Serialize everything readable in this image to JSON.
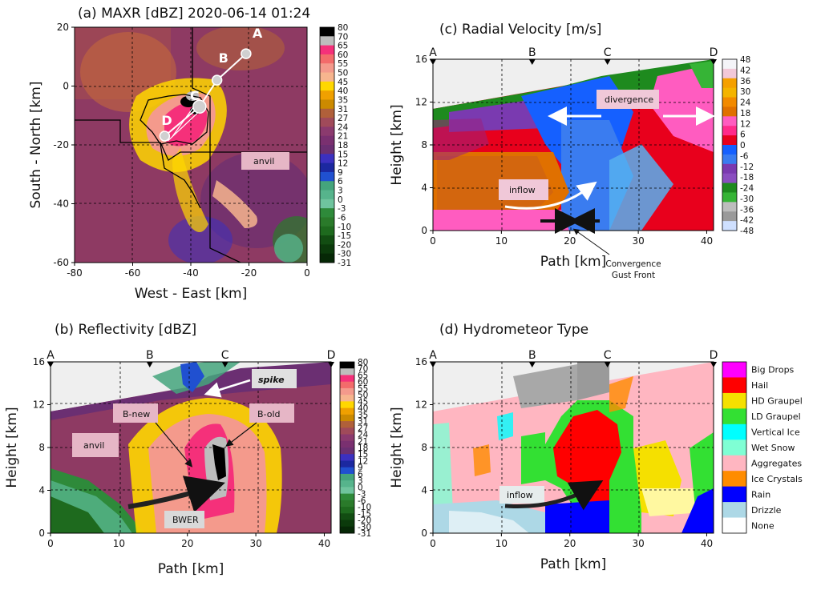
{
  "panels": {
    "a": {
      "title": "(a) MAXR [dBZ] 2020-06-14 01:24",
      "xlabel": "West - East [km]",
      "ylabel": "South - North [km]",
      "xticks": [
        "-80",
        "-60",
        "-40",
        "-20",
        "0"
      ],
      "yticks": [
        "20",
        "0",
        "-20",
        "-40",
        "-60"
      ],
      "colorbar": [
        "80",
        "70",
        "65",
        "60",
        "55",
        "50",
        "45",
        "40",
        "35",
        "31",
        "27",
        "24",
        "21",
        "18",
        "15",
        "12",
        "9",
        "6",
        "3",
        "0",
        "-3",
        "-6",
        "-10",
        "-15",
        "-20",
        "-30",
        "-31"
      ],
      "colorbar_colors": [
        "#000000",
        "#bdbdbd",
        "#f5307a",
        "#f36b6b",
        "#f49a8c",
        "#f7b58e",
        "#ffd700",
        "#f0a000",
        "#cc8a00",
        "#b0603a",
        "#a04a5a",
        "#8b3a6e",
        "#7a3070",
        "#6b2f72",
        "#3b30c0",
        "#1b28a0",
        "#2050d0",
        "#44a47c",
        "#56b48c",
        "#6fc49e",
        "#2e8a3a",
        "#2a7a2a",
        "#1e6a1e",
        "#124d12",
        "#0b3a0b",
        "#062806"
      ],
      "points": [
        "A",
        "B",
        "C",
        "D"
      ],
      "annotation": "anvil"
    },
    "b": {
      "title": "(b) Reflectivity [dBZ]",
      "xlabel": "Path [km]",
      "ylabel": "Height [km]",
      "xticks": [
        "0",
        "10",
        "20",
        "30",
        "40"
      ],
      "yticks": [
        "16",
        "12",
        "8",
        "4",
        "0"
      ],
      "path_points": [
        "A",
        "B",
        "C",
        "D"
      ],
      "colorbar": [
        "80",
        "70",
        "65",
        "60",
        "55",
        "50",
        "45",
        "40",
        "35",
        "31",
        "27",
        "24",
        "21",
        "18",
        "15",
        "12",
        "9",
        "6",
        "3",
        "0",
        "-3",
        "-6",
        "-10",
        "-15",
        "-20",
        "-30",
        "-31"
      ],
      "annotations": {
        "spike": "spike",
        "b_new": "B-new",
        "b_old": "B-old",
        "anvil": "anvil",
        "bwer": "BWER"
      }
    },
    "c": {
      "title": "(c)  Radial Velocity [m/s]",
      "xlabel": "Path [km]",
      "ylabel": "Height [km]",
      "xticks": [
        "0",
        "10",
        "20",
        "30",
        "40"
      ],
      "yticks": [
        "16",
        "12",
        "8",
        "4",
        "0"
      ],
      "path_points": [
        "A",
        "B",
        "C",
        "D"
      ],
      "colorbar": [
        "48",
        "42",
        "36",
        "30",
        "24",
        "18",
        "12",
        "6",
        "0",
        "-6",
        "-12",
        "-18",
        "-24",
        "-30",
        "-36",
        "-42",
        "-48"
      ],
      "colorbar_colors": [
        "#f4f4f8",
        "#f2c8d8",
        "#f5a000",
        "#f4b400",
        "#f28a00",
        "#e07000",
        "#ff5cc0",
        "#ff2a8a",
        "#e8001c",
        "#1560ff",
        "#3a7cf0",
        "#7a3ab0",
        "#8a4ec0",
        "#1e8a1e",
        "#36b436",
        "#bdbdbd",
        "#9a9a9a",
        "#cfe0ff"
      ],
      "annotations": {
        "divergence": "divergence",
        "inflow": "inflow",
        "convergence": "Convergence",
        "gust_front": "Gust Front"
      }
    },
    "d": {
      "title": "(d)  Hydrometeor Type",
      "xlabel": "Path [km]",
      "ylabel": "Height [km]",
      "xticks": [
        "0",
        "10",
        "20",
        "30",
        "40"
      ],
      "yticks": [
        "16",
        "12",
        "8",
        "4",
        "0"
      ],
      "path_points": [
        "A",
        "B",
        "C",
        "D"
      ],
      "legend": [
        {
          "label": "Big Drops",
          "color": "#ff00ff"
        },
        {
          "label": "Hail",
          "color": "#ff0000"
        },
        {
          "label": "HD Graupel",
          "color": "#f5e000"
        },
        {
          "label": "LD Graupel",
          "color": "#33e033"
        },
        {
          "label": "Vertical Ice",
          "color": "#00ffff"
        },
        {
          "label": "Wet Snow",
          "color": "#7fffd4"
        },
        {
          "label": "Aggregates",
          "color": "#ffb6c1"
        },
        {
          "label": "Ice Crystals",
          "color": "#ff8c00"
        },
        {
          "label": "Rain",
          "color": "#0000ff"
        },
        {
          "label": "Drizzle",
          "color": "#add8e6"
        },
        {
          "label": "None",
          "color": "#ffffff"
        }
      ],
      "annotation": "inflow"
    }
  },
  "chart_data": [
    {
      "type": "heatmap",
      "title": "(a) MAXR [dBZ] 2020-06-14 01:24",
      "xlabel": "West - East [km]",
      "ylabel": "South - North [km]",
      "xlim": [
        -80,
        0
      ],
      "ylim": [
        -60,
        20
      ],
      "path_points": [
        {
          "name": "A",
          "x": -21,
          "y": 11
        },
        {
          "name": "B",
          "x": -31,
          "y": 2
        },
        {
          "name": "C",
          "x": -37,
          "y": -7
        },
        {
          "name": "D",
          "x": -49,
          "y": -17
        }
      ]
    },
    {
      "type": "heatmap",
      "title": "(b) Reflectivity [dBZ]",
      "xlabel": "Path [km]",
      "ylabel": "Height [km]",
      "xlim": [
        0,
        41
      ],
      "ylim": [
        0,
        16
      ],
      "path_positions": {
        "A": 0,
        "B": 14.5,
        "C": 25.5,
        "D": 41
      }
    },
    {
      "type": "heatmap",
      "title": "(c)  Radial Velocity [m/s]",
      "xlabel": "Path [km]",
      "ylabel": "Height [km]",
      "xlim": [
        0,
        41
      ],
      "ylim": [
        0,
        16
      ],
      "path_positions": {
        "A": 0,
        "B": 14.5,
        "C": 25.5,
        "D": 41
      }
    },
    {
      "type": "heatmap",
      "title": "(d)  Hydrometeor Type",
      "xlabel": "Path [km]",
      "ylabel": "Height [km]",
      "xlim": [
        0,
        41
      ],
      "ylim": [
        0,
        16
      ],
      "path_positions": {
        "A": 0,
        "B": 14.5,
        "C": 25.5,
        "D": 41
      }
    }
  ]
}
